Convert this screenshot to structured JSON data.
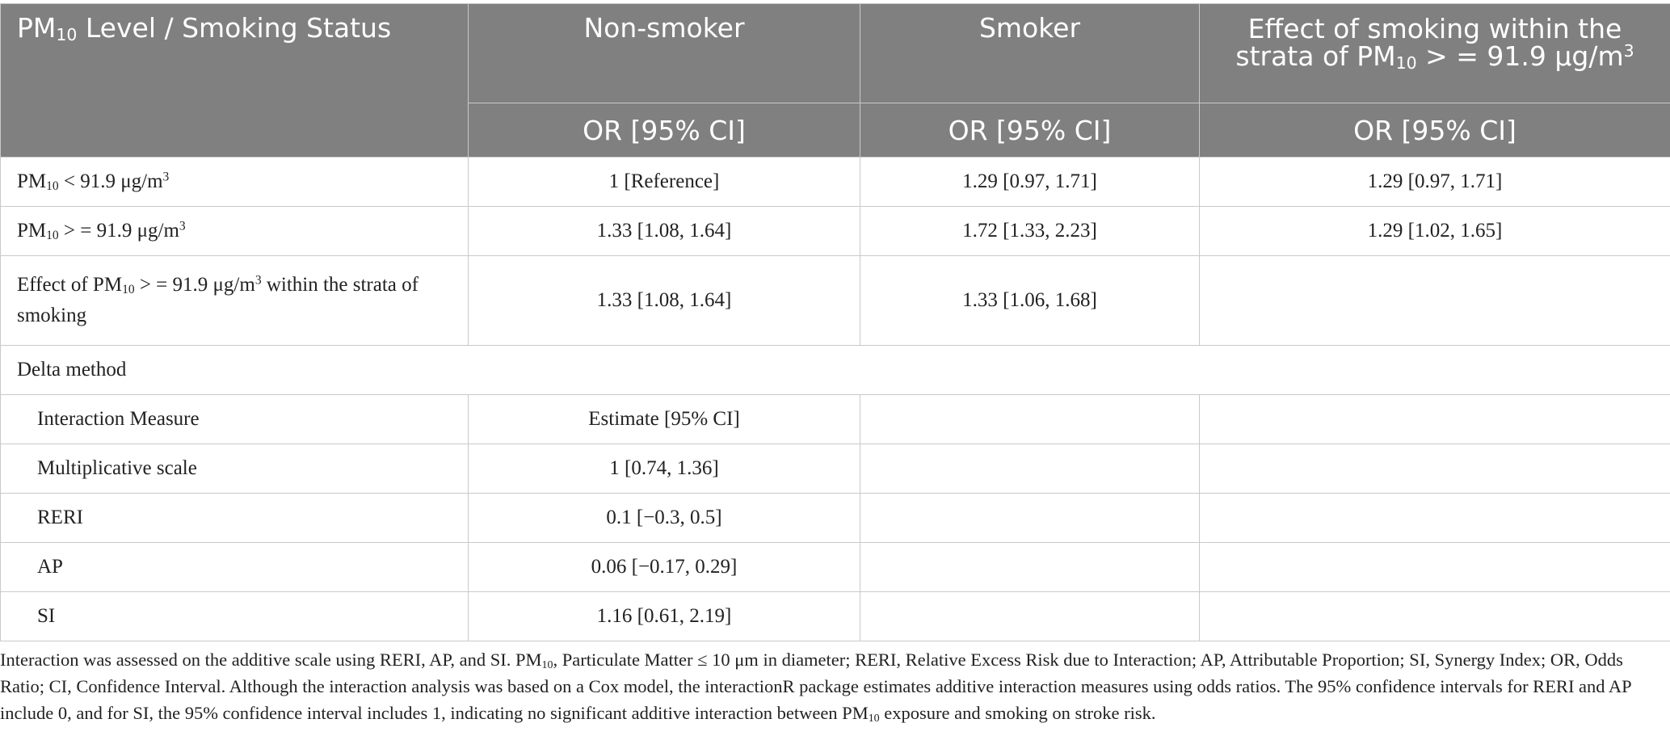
{
  "header": {
    "col1": {
      "pre": "PM",
      "sub": "10",
      "post": " Level / Smoking Status"
    },
    "col2": "Non-smoker",
    "col3": "Smoker",
    "col4": {
      "line1": "Effect of smoking within the",
      "pre": "strata of PM",
      "sub": "10",
      "mid": " > = 91.9 μg/m",
      "sup": "3"
    },
    "subhead": [
      "OR [95% CI]",
      "OR [95% CI]",
      "OR [95% CI]"
    ]
  },
  "rows": {
    "pm_low": {
      "pre": "PM",
      "sub": "10",
      "mid": " < 91.9 μg/m",
      "sup": "3",
      "nonsmoker": "1 [Reference]",
      "smoker": "1.29 [0.97, 1.71]",
      "effect": "1.29 [0.97, 1.71]"
    },
    "pm_high": {
      "pre": "PM",
      "sub": "10",
      "mid": " > = 91.9 μg/m",
      "sup": "3",
      "nonsmoker": "1.33 [1.08, 1.64]",
      "smoker": "1.72 [1.33, 2.23]",
      "effect": "1.29 [1.02, 1.65]"
    },
    "effect_pm": {
      "pre": "Effect of PM",
      "sub": "10",
      "mid": " > = 91.9 μg/m",
      "sup": "3",
      "post": " within the strata of smoking",
      "nonsmoker": "1.33 [1.08, 1.64]",
      "smoker": "1.33 [1.06, 1.68]",
      "effect": ""
    },
    "delta": {
      "label": "Delta method"
    },
    "interaction": {
      "label": "Interaction Measure",
      "value": "Estimate [95% CI]"
    },
    "multiplicative": {
      "label": "Multiplicative scale",
      "value": "1 [0.74, 1.36]"
    },
    "reri": {
      "label": "RERI",
      "value": "0.1 [−0.3, 0.5]"
    },
    "ap": {
      "label": "AP",
      "value": "0.06 [−0.17, 0.29]"
    },
    "si": {
      "label": "SI",
      "value": "1.16 [0.61, 2.19]"
    }
  },
  "footnote": {
    "part1": "Interaction was assessed on the additive scale using RERI, AP, and SI. PM",
    "sub1": "10",
    "part2": ", Particulate Matter ≤ 10 μm in diameter; RERI, Relative Excess Risk due to Interaction; AP, Attributable Proportion; SI, Synergy Index; OR, Odds Ratio; CI, Confidence Interval. Although the interaction analysis was based on a Cox model, the interactionR package estimates additive interaction measures using odds ratios. The 95% confidence intervals for RERI and AP include 0, and for SI, the 95% confidence interval includes 1, indicating no significant additive interaction between PM",
    "sub2": "10",
    "part3": " exposure and smoking on stroke risk."
  }
}
